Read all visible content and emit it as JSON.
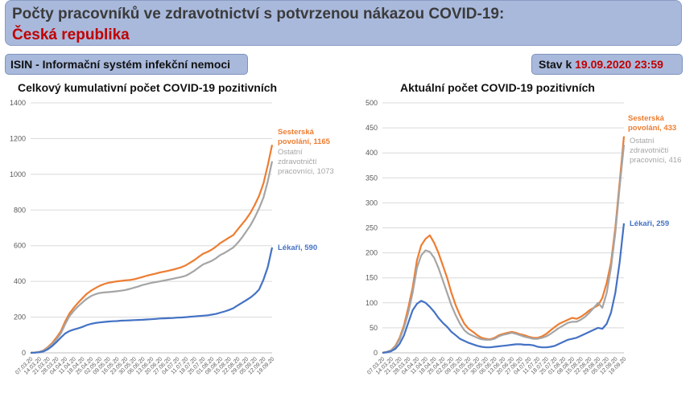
{
  "header": {
    "title_line1": "Počty pracovníků ve zdravotnictví s potvrzenou nákazou COVID-19:",
    "title_line2": "Česká republika"
  },
  "isin_label": "ISIN - Informační systém infekční nemoci",
  "stav": {
    "prefix": "Stav k ",
    "datetime": "19.09.2020 23:59"
  },
  "colors": {
    "sesterska": "#ed7d31",
    "ostatni": "#a5a5a5",
    "lekari": "#4472c4",
    "header_bg": "#a9b9dc",
    "accent_red": "#c00000"
  },
  "chart_data": [
    {
      "type": "line",
      "title": "Celkový kumulativní počet COVID-19 pozitivních",
      "ylim": [
        0,
        1400
      ],
      "yticks": [
        "0",
        "200",
        "400",
        "600",
        "800",
        "1000",
        "1200",
        "1400"
      ],
      "grid": true,
      "x": [
        "07.03.20",
        "11.03.20",
        "14.03.20",
        "17.03.20",
        "21.03.20",
        "24.03.20",
        "28.03.20",
        "31.03.20",
        "04.04.20",
        "07.04.20",
        "11.04.20",
        "14.04.20",
        "18.04.20",
        "21.04.20",
        "25.04.20",
        "28.04.20",
        "02.05.20",
        "05.05.20",
        "09.05.20",
        "12.05.20",
        "16.05.20",
        "19.05.20",
        "23.05.20",
        "26.05.20",
        "30.05.20",
        "02.06.20",
        "06.06.20",
        "09.06.20",
        "13.06.20",
        "16.06.20",
        "20.06.20",
        "23.06.20",
        "27.06.20",
        "30.06.20",
        "04.07.20",
        "07.07.20",
        "11.07.20",
        "14.07.20",
        "18.07.20",
        "21.07.20",
        "25.07.20",
        "28.07.20",
        "01.08.20",
        "04.08.20",
        "08.08.20",
        "11.08.20",
        "15.08.20",
        "18.08.20",
        "22.08.20",
        "25.08.20",
        "29.08.20",
        "01.09.20",
        "05.09.20",
        "08.09.20",
        "12.09.20",
        "15.09.20",
        "19.09.20"
      ],
      "xticks_left": [
        "07.03.20",
        "14.03.20",
        "21.03.20",
        "28.03.20",
        "04.04.20",
        "11.04.20",
        "18.04.20",
        "25.04.20",
        "02.05.20",
        "09.05.20",
        "16.05.20",
        "23.05.20",
        "30.05.20",
        "06.06.20",
        "13.06.20",
        "20.06.20",
        "27.06.20",
        "04.07.20",
        "11.07.20",
        "18.07.20",
        "25.07.20",
        "01.08.20",
        "08.08.20",
        "15.08.20",
        "22.08.20",
        "29.08.20",
        "05.09.20",
        "12.09.20",
        "19.09.20"
      ],
      "series": [
        {
          "name": "Sesterská povolání",
          "color": "#ed7d31",
          "label_name": "Sesterská povolání",
          "label_value": "1165",
          "values": [
            0,
            2,
            5,
            14,
            32,
            55,
            85,
            120,
            175,
            220,
            252,
            280,
            305,
            330,
            348,
            362,
            375,
            385,
            392,
            396,
            400,
            403,
            406,
            408,
            412,
            418,
            425,
            432,
            438,
            444,
            450,
            455,
            460,
            466,
            472,
            480,
            490,
            505,
            520,
            538,
            555,
            565,
            578,
            595,
            615,
            630,
            645,
            660,
            690,
            720,
            750,
            785,
            830,
            880,
            950,
            1050,
            1165
          ]
        },
        {
          "name": "Ostatní zdravotničtí pracovníci",
          "color": "#a5a5a5",
          "label_name": "Ostatní zdravotničtí pracovníci",
          "label_value": "1073",
          "values": [
            0,
            2,
            5,
            12,
            28,
            48,
            75,
            108,
            160,
            205,
            235,
            260,
            282,
            302,
            318,
            328,
            335,
            338,
            340,
            342,
            345,
            348,
            352,
            358,
            365,
            372,
            380,
            386,
            392,
            396,
            400,
            405,
            410,
            415,
            420,
            425,
            432,
            445,
            460,
            478,
            495,
            505,
            515,
            530,
            548,
            560,
            575,
            590,
            615,
            645,
            680,
            715,
            760,
            810,
            870,
            960,
            1073
          ]
        },
        {
          "name": "Lékaři",
          "color": "#4472c4",
          "label_name": "Lékaři",
          "label_value": "590",
          "values": [
            0,
            1,
            3,
            8,
            20,
            38,
            60,
            85,
            108,
            122,
            130,
            137,
            145,
            155,
            162,
            167,
            170,
            173,
            175,
            177,
            178,
            180,
            181,
            182,
            183,
            184,
            185,
            187,
            188,
            190,
            192,
            193,
            194,
            195,
            197,
            198,
            200,
            202,
            204,
            206,
            208,
            210,
            214,
            218,
            225,
            232,
            240,
            250,
            265,
            280,
            295,
            310,
            330,
            355,
            410,
            480,
            590
          ]
        }
      ]
    },
    {
      "type": "line",
      "title": "Aktuální počet COVID-19 pozitivních",
      "ylim": [
        0,
        500
      ],
      "yticks": [
        "0",
        "50",
        "100",
        "150",
        "200",
        "250",
        "300",
        "350",
        "400",
        "450",
        "500"
      ],
      "grid": true,
      "xticks_left": [
        "07.03.20",
        "14.03.20",
        "21.03.20",
        "28.03.20",
        "04.04.20",
        "11.04.20",
        "18.04.20",
        "25.04.20",
        "02.05.20",
        "09.05.20",
        "16.05.20",
        "23.05.20",
        "30.05.20",
        "06.06.20",
        "13.06.20",
        "20.06.20",
        "27.06.20",
        "04.07.20",
        "11.07.20",
        "18.07.20",
        "25.07.20",
        "01.08.20",
        "08.08.20",
        "15.08.20",
        "22.08.20",
        "29.08.20",
        "05.09.20",
        "12.09.20",
        "19.09.20"
      ],
      "series": [
        {
          "name": "Sesterská povolání",
          "color": "#ed7d31",
          "label_name": "Sesterská povolání",
          "label_value": "433",
          "values": [
            0,
            2,
            5,
            14,
            30,
            55,
            90,
            130,
            185,
            215,
            228,
            235,
            220,
            200,
            175,
            150,
            120,
            95,
            75,
            58,
            48,
            42,
            35,
            30,
            28,
            27,
            30,
            35,
            38,
            40,
            42,
            40,
            37,
            35,
            32,
            30,
            30,
            33,
            38,
            45,
            52,
            58,
            62,
            66,
            70,
            68,
            72,
            78,
            85,
            90,
            95,
            110,
            140,
            180,
            250,
            340,
            433
          ]
        },
        {
          "name": "Ostatní zdravotničtí pracovníci",
          "color": "#a5a5a5",
          "label_name": "Ostatní zdravotničtí pracovníci",
          "label_value": "416",
          "values": [
            0,
            2,
            5,
            12,
            27,
            50,
            80,
            120,
            170,
            195,
            205,
            202,
            190,
            170,
            145,
            120,
            95,
            75,
            58,
            45,
            38,
            34,
            30,
            27,
            26,
            26,
            28,
            33,
            36,
            38,
            40,
            38,
            35,
            32,
            30,
            28,
            28,
            30,
            33,
            38,
            44,
            50,
            55,
            60,
            62,
            62,
            66,
            72,
            80,
            90,
            100,
            90,
            120,
            170,
            240,
            330,
            416
          ]
        },
        {
          "name": "Lékaři",
          "color": "#4472c4",
          "label_name": "Lékaři",
          "label_value": "259",
          "values": [
            0,
            1,
            3,
            8,
            18,
            35,
            60,
            85,
            98,
            104,
            100,
            92,
            82,
            70,
            60,
            52,
            42,
            35,
            28,
            24,
            20,
            17,
            14,
            12,
            11,
            11,
            12,
            13,
            14,
            15,
            16,
            17,
            17,
            16,
            16,
            15,
            12,
            11,
            11,
            12,
            14,
            18,
            22,
            26,
            28,
            30,
            34,
            38,
            42,
            46,
            50,
            48,
            58,
            80,
            120,
            180,
            259
          ]
        }
      ]
    }
  ]
}
